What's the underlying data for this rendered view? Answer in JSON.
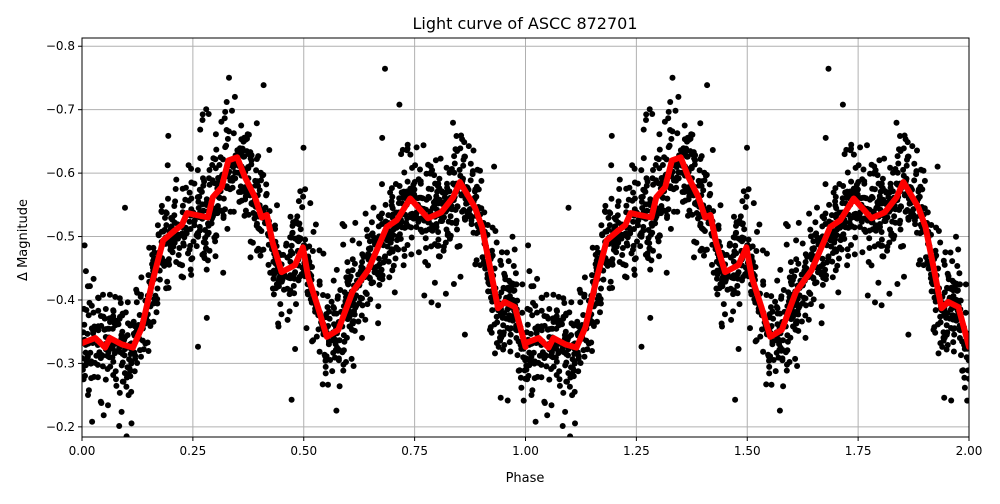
{
  "chart_data": {
    "type": "scatter",
    "title": "Light curve of ASCC 872701",
    "xlabel": "Phase",
    "ylabel": "Δ Magnitude",
    "xlim": [
      0,
      2
    ],
    "ylim": [
      -0.813,
      -0.184
    ],
    "y_inverted": true,
    "grid": true,
    "xticks": [
      "0.00",
      "0.25",
      "0.50",
      "0.75",
      "1.00",
      "1.25",
      "1.50",
      "1.75",
      "2.00"
    ],
    "xtick_values": [
      0,
      0.25,
      0.5,
      0.75,
      1,
      1.25,
      1.5,
      1.75,
      2
    ],
    "yticks": [
      "−0.8",
      "−0.7",
      "−0.6",
      "−0.5",
      "−0.4",
      "−0.3",
      "−0.2"
    ],
    "ytick_values": [
      -0.8,
      -0.7,
      -0.6,
      -0.5,
      -0.4,
      -0.3,
      -0.2
    ],
    "series": [
      {
        "kind": "scatter",
        "color": "#000000",
        "description_of_points": "phase-folded photometry, repeated for phase 0-1 and 1-2"
      },
      {
        "kind": "line",
        "color": "#ff0000",
        "period_phase": [
          0,
          0.03,
          0.052,
          0.063,
          0.09,
          0.115,
          0.135,
          0.158,
          0.183,
          0.21,
          0.225,
          0.237,
          0.284,
          0.295,
          0.315,
          0.33,
          0.35,
          0.367,
          0.39,
          0.405,
          0.417,
          0.43,
          0.45,
          0.48,
          0.498,
          0.51,
          0.532,
          0.552,
          0.578,
          0.61,
          0.645,
          0.687,
          0.71,
          0.74,
          0.78,
          0.81,
          0.837,
          0.852,
          0.886,
          0.902,
          0.92,
          0.938,
          0.953,
          0.976,
          1.0
        ],
        "period_mag": [
          -0.332,
          -0.34,
          -0.325,
          -0.34,
          -0.33,
          -0.325,
          -0.357,
          -0.427,
          -0.494,
          -0.51,
          -0.518,
          -0.537,
          -0.53,
          -0.562,
          -0.578,
          -0.62,
          -0.625,
          -0.594,
          -0.562,
          -0.53,
          -0.534,
          -0.49,
          -0.444,
          -0.455,
          -0.483,
          -0.436,
          -0.389,
          -0.342,
          -0.353,
          -0.413,
          -0.447,
          -0.515,
          -0.526,
          -0.56,
          -0.529,
          -0.538,
          -0.562,
          -0.586,
          -0.546,
          -0.515,
          -0.452,
          -0.387,
          -0.397,
          -0.389,
          -0.326
        ]
      }
    ]
  }
}
